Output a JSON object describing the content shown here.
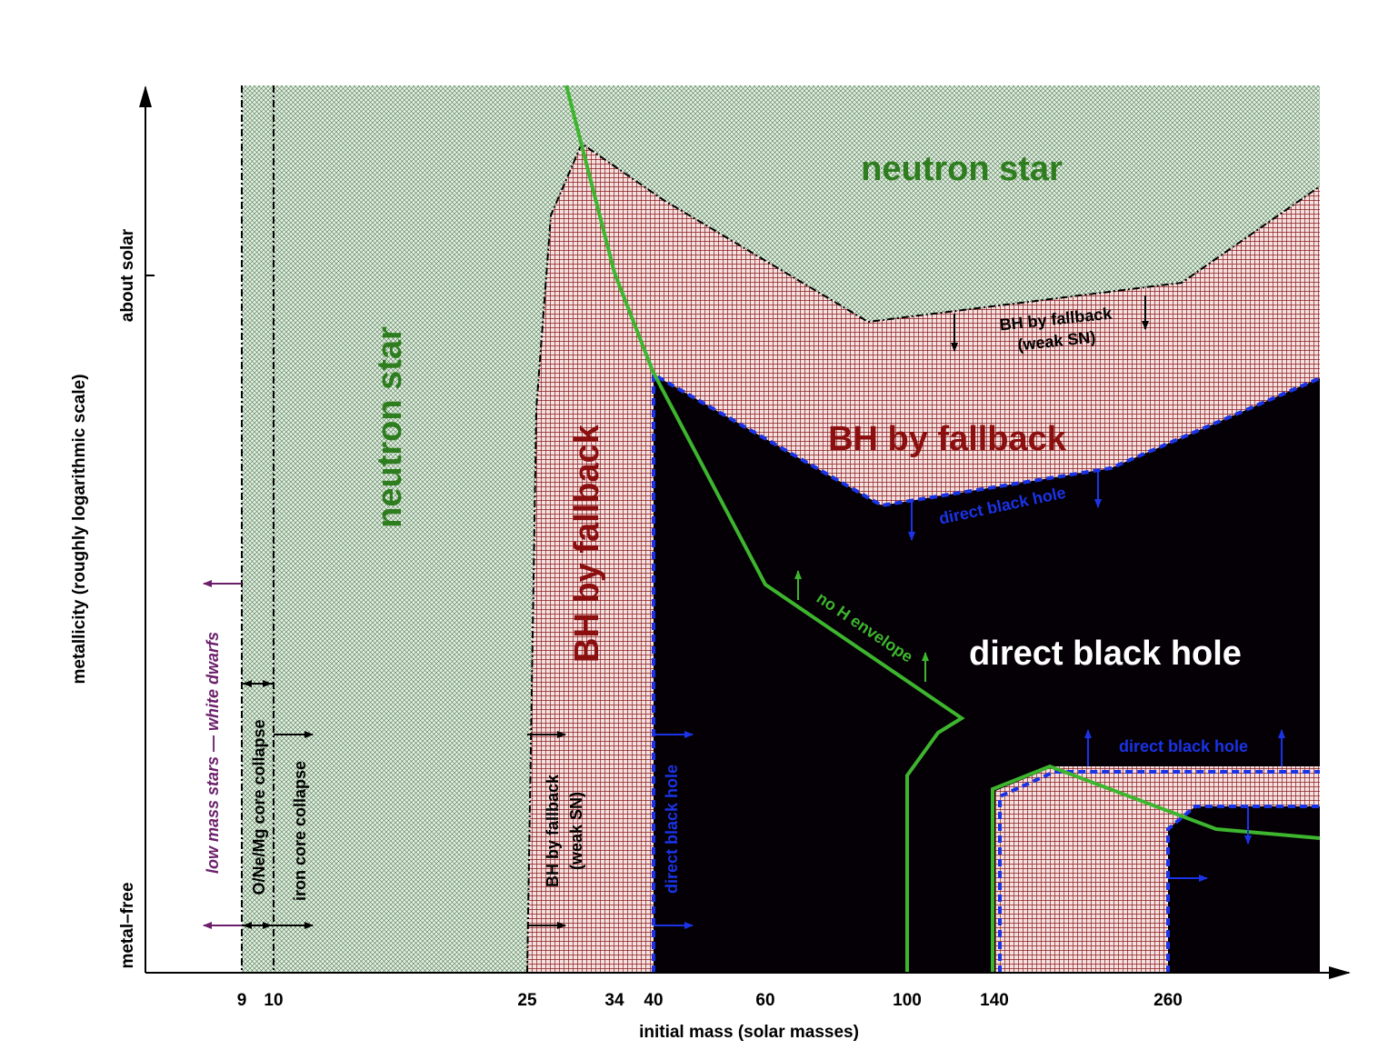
{
  "x_axis": {
    "label": "initial mass (solar masses)",
    "ticks": [
      "9",
      "10",
      "25",
      "34",
      "40",
      "60",
      "100",
      "140",
      "260"
    ]
  },
  "y_axis": {
    "label": "metallicity (roughly logarithmic scale)",
    "ticks": [
      "metal–free",
      "about solar"
    ]
  },
  "regions": {
    "neutron_star_top": "neutron star",
    "neutron_star_left": "neutron star",
    "bh_fallback_vertical": "BH by fallback",
    "bh_fallback_horizontal": "BH by fallback",
    "direct_black_hole": "direct black hole",
    "bh_fallback_weak_top_line1": "BH by fallback",
    "bh_fallback_weak_top_line2": "(weak SN)",
    "bh_fallback_weak_left_line1": "BH by fallback",
    "bh_fallback_weak_left_line2": "(weak SN)",
    "direct_black_hole_upper": "direct black hole",
    "direct_black_hole_vertical": "direct black hole",
    "direct_black_hole_right": "direct black hole",
    "no_h_envelope": "no H envelope",
    "low_mass_stars": "low mass stars — white dwarfs",
    "onemg_core_collapse": "O/Ne/Mg core collapse",
    "iron_core_collapse": "iron core collapse"
  },
  "colors": {
    "neutron_star_fill": "#e6efe6",
    "neutron_star_hatch": "#4a7a4a",
    "fallback_fill": "#f4e0e0",
    "fallback_hatch": "#8b1a1a",
    "black_hole": "#050005",
    "h_envelope_line": "#3db52e",
    "dashed_boundary": "#1a33e6",
    "neutron_label": "#2e7d1e",
    "fallback_label": "#8b0f0f",
    "white_dwarf_label": "#6b1f6b"
  }
}
